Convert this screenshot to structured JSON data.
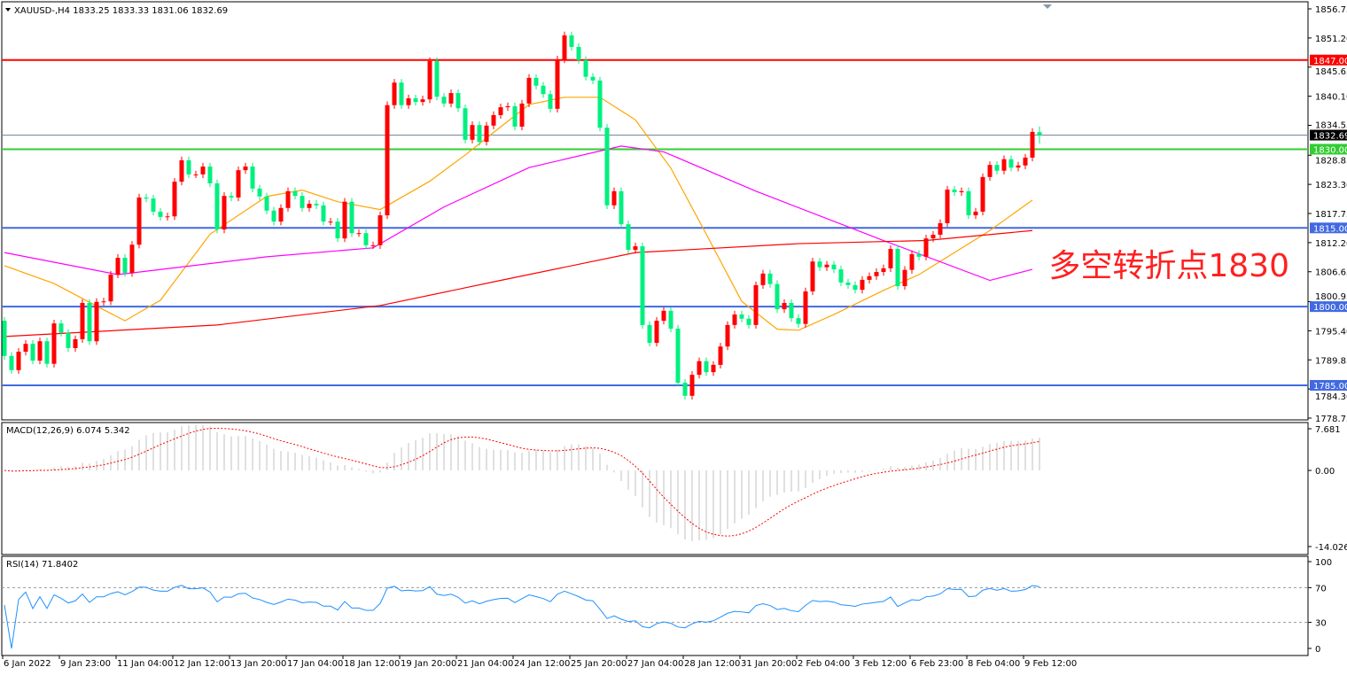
{
  "header": {
    "symbol_line": "XAUUSD-,H4  1833.25 1833.33 1831.06 1832.69"
  },
  "annotation": {
    "text": "多空转折点1830",
    "color": "#ff2020"
  },
  "colors": {
    "bull": "#ff0000",
    "bear": "#00f080",
    "ma_fast": "#ffa500",
    "ma_mid": "#ff00ff",
    "ma_slow": "#ff0000",
    "level_red": "#ff0000",
    "level_green": "#32cd32",
    "level_blue": "#4169e1",
    "current": "#778899",
    "macd_hist": "#c0c0c0",
    "macd_signal": "#ff0000",
    "rsi": "#1e90ff"
  },
  "chart_data": {
    "type": "candlestick",
    "symbol": "XAUUSD-",
    "timeframe": "H4",
    "ylim": [
      1778.75,
      1856.75
    ],
    "price_ticks": [
      "1856.75",
      "1851.20",
      "1845.65",
      "1840.10",
      "1834.55",
      "1828.85",
      "1823.30",
      "1817.75",
      "1812.20",
      "1806.65",
      "1800.95",
      "1795.40",
      "1789.85",
      "1784.30",
      "1778.75"
    ],
    "first_open": 1797.3,
    "close": [
      1790.6,
      1787.9,
      1791.4,
      1792.9,
      1789.7,
      1793.4,
      1789.1,
      1796.8,
      1795.0,
      1792.1,
      1793.8,
      1800.7,
      1793.4,
      1800.9,
      1801.0,
      1806.1,
      1809.3,
      1806.4,
      1811.8,
      1820.8,
      1820.6,
      1818.1,
      1817.1,
      1817.2,
      1823.8,
      1827.9,
      1825.2,
      1825.2,
      1826.7,
      1823.5,
      1814.7,
      1821.1,
      1820.8,
      1826.0,
      1826.7,
      1822.5,
      1821.0,
      1818.3,
      1816.2,
      1818.8,
      1822.0,
      1821.1,
      1818.8,
      1819.6,
      1819.3,
      1816.2,
      1816.2,
      1813.0,
      1820.0,
      1814.0,
      1814.0,
      1811.7,
      1811.7,
      1817.4,
      1838.4,
      1842.7,
      1838.4,
      1839.7,
      1839.0,
      1839.5,
      1846.8,
      1840.0,
      1838.7,
      1840.7,
      1837.8,
      1831.8,
      1834.6,
      1831.4,
      1834.5,
      1836.5,
      1838.0,
      1838.2,
      1834.3,
      1838.7,
      1843.6,
      1842.1,
      1840.5,
      1837.7,
      1847.1,
      1851.7,
      1849.5,
      1847.0,
      1843.8,
      1843.1,
      1834.1,
      1819.3,
      1822.0,
      1815.7,
      1810.8,
      1811.5,
      1796.5,
      1793.1,
      1797.3,
      1799.2,
      1795.8,
      1785.5,
      1783.0,
      1787.0,
      1789.6,
      1787.5,
      1788.9,
      1792.4,
      1796.5,
      1798.5,
      1797.7,
      1796.5,
      1804.1,
      1806.3,
      1804.3,
      1799.5,
      1800.7,
      1797.8,
      1796.7,
      1802.9,
      1808.6,
      1807.5,
      1808.0,
      1807.1,
      1804.6,
      1804.1,
      1803.2,
      1805.1,
      1805.8,
      1806.6,
      1807.3,
      1811.0,
      1803.9,
      1807.0,
      1810.0,
      1809.5,
      1813.0,
      1813.7,
      1815.9,
      1822.3,
      1821.8,
      1822.0,
      1817.4,
      1818.1,
      1824.7,
      1827.0,
      1825.9,
      1828.1,
      1826.5,
      1826.9,
      1828.4,
      1833.3,
      1832.7
    ],
    "last_bar": {
      "open": 1833.25,
      "high": 1833.33,
      "low": 1831.06,
      "close": 1832.69
    },
    "moving_averages": [
      {
        "color_key": "ma_fast",
        "points": [
          [
            0,
            1807.8
          ],
          [
            7,
            1804.4
          ],
          [
            14,
            1799.4
          ],
          [
            17,
            1797.3
          ],
          [
            22,
            1801.2
          ],
          [
            29,
            1813.8
          ],
          [
            37,
            1821.0
          ],
          [
            42,
            1822.2
          ],
          [
            47,
            1820.0
          ],
          [
            53,
            1818.5
          ],
          [
            60,
            1823.9
          ],
          [
            65,
            1828.9
          ],
          [
            69,
            1833.2
          ],
          [
            74,
            1838.5
          ],
          [
            79,
            1839.9
          ],
          [
            84,
            1839.9
          ],
          [
            89,
            1835.6
          ],
          [
            94,
            1826.4
          ],
          [
            99,
            1813.8
          ],
          [
            104,
            1801.0
          ],
          [
            109,
            1795.7
          ],
          [
            112,
            1795.5
          ],
          [
            117,
            1798.5
          ],
          [
            124,
            1803.1
          ],
          [
            129,
            1806.1
          ],
          [
            134,
            1810.3
          ],
          [
            139,
            1814.5
          ],
          [
            145,
            1820.3
          ]
        ]
      },
      {
        "color_key": "ma_mid",
        "points": [
          [
            0,
            1810.3
          ],
          [
            16,
            1806.1
          ],
          [
            37,
            1809.5
          ],
          [
            52,
            1811.2
          ],
          [
            62,
            1819.0
          ],
          [
            74,
            1826.5
          ],
          [
            87,
            1830.6
          ],
          [
            93,
            1829.5
          ],
          [
            106,
            1822.0
          ],
          [
            124,
            1812.6
          ],
          [
            139,
            1805.0
          ],
          [
            145,
            1807.1
          ]
        ]
      },
      {
        "color_key": "ma_slow",
        "points": [
          [
            0,
            1794.3
          ],
          [
            30,
            1796.5
          ],
          [
            53,
            1800.2
          ],
          [
            70,
            1805.0
          ],
          [
            89,
            1810.3
          ],
          [
            112,
            1812.0
          ],
          [
            130,
            1812.6
          ],
          [
            145,
            1814.5
          ]
        ]
      }
    ],
    "levels": [
      {
        "value": 1847.0,
        "label": "1847.00",
        "color_key": "level_red"
      },
      {
        "value": 1830.0,
        "label": "1830.00",
        "color_key": "level_green"
      },
      {
        "value": 1815.0,
        "label": "1815.00",
        "color_key": "level_blue"
      },
      {
        "value": 1800.0,
        "label": "1800.00",
        "color_key": "level_blue"
      },
      {
        "value": 1785.0,
        "label": "1785.00",
        "color_key": "level_blue"
      }
    ],
    "current_price": {
      "value": 1832.69,
      "label": "1832.69"
    },
    "x_labels": [
      "6 Jan 2022",
      "9 Jan 23:00",
      "11 Jan 04:00",
      "12 Jan 12:00",
      "13 Jan 20:00",
      "17 Jan 04:00",
      "18 Jan 12:00",
      "19 Jan 20:00",
      "21 Jan 04:00",
      "24 Jan 12:00",
      "25 Jan 20:00",
      "27 Jan 04:00",
      "28 Jan 12:00",
      "31 Jan 20:00",
      "2 Feb 04:00",
      "3 Feb 12:00",
      "6 Feb 23:00",
      "8 Feb 04:00",
      "9 Feb 12:00"
    ],
    "x_label_every_bars": 8,
    "macd": {
      "title": "MACD(12,26,9) 6.074 5.342",
      "params": [
        12,
        26,
        9
      ],
      "ticks": [
        "7.681",
        "0.00",
        "-14.026"
      ],
      "ylim": [
        -14.026,
        7.681
      ]
    },
    "rsi": {
      "title": "RSI(14) 71.8402",
      "period": 14,
      "ticks": [
        "100",
        "70",
        "30",
        "0"
      ],
      "levels": [
        70,
        30
      ]
    }
  }
}
